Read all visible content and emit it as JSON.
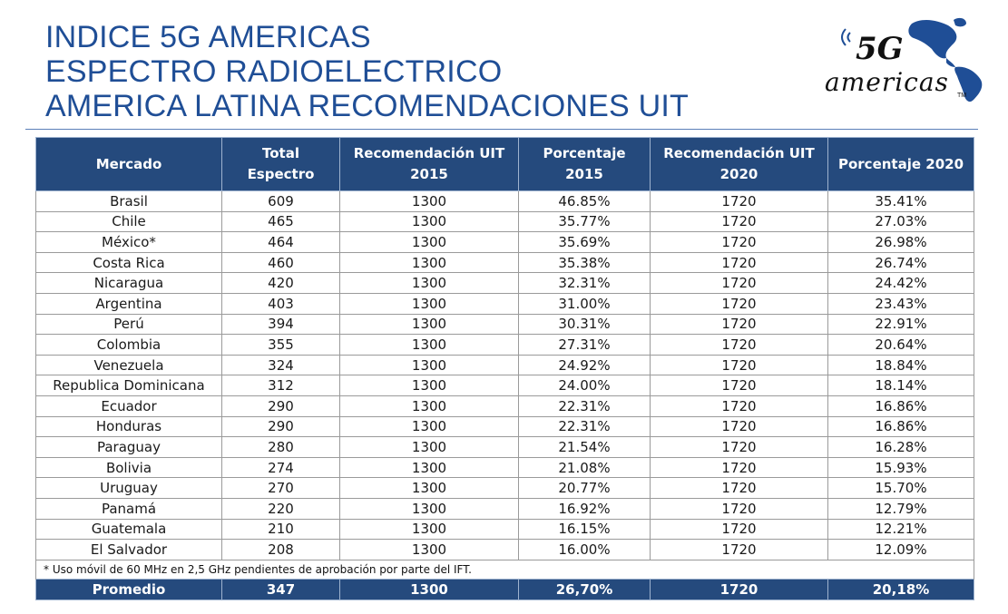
{
  "title": {
    "line1": "INDICE 5G AMERICAS",
    "line2": "ESPECTRO RADIOELECTRICO",
    "line3": "AMERICA LATINA RECOMENDACIONES UIT"
  },
  "logo": {
    "text_top": "5G",
    "text_bottom": "americas",
    "tm": "TM",
    "icon": "americas-map-logo-icon",
    "colors": {
      "map": "#1f4e96",
      "text": "#111111"
    }
  },
  "table": {
    "headers": [
      {
        "line1": "Mercado",
        "line2": ""
      },
      {
        "line1": "Total",
        "line2": "Espectro"
      },
      {
        "line1": "Recomendación UIT",
        "line2": "2015"
      },
      {
        "line1": "Porcentaje",
        "line2": "2015"
      },
      {
        "line1": "Recomendación UIT",
        "line2": "2020"
      },
      {
        "line1": "Porcentaje 2020",
        "line2": ""
      }
    ],
    "rows": [
      [
        "Brasil",
        "609",
        "1300",
        "46.85%",
        "1720",
        "35.41%"
      ],
      [
        "Chile",
        "465",
        "1300",
        "35.77%",
        "1720",
        "27.03%"
      ],
      [
        "México*",
        "464",
        "1300",
        "35.69%",
        "1720",
        "26.98%"
      ],
      [
        "Costa Rica",
        "460",
        "1300",
        "35.38%",
        "1720",
        "26.74%"
      ],
      [
        "Nicaragua",
        "420",
        "1300",
        "32.31%",
        "1720",
        "24.42%"
      ],
      [
        "Argentina",
        "403",
        "1300",
        "31.00%",
        "1720",
        "23.43%"
      ],
      [
        "Perú",
        "394",
        "1300",
        "30.31%",
        "1720",
        "22.91%"
      ],
      [
        "Colombia",
        "355",
        "1300",
        "27.31%",
        "1720",
        "20.64%"
      ],
      [
        "Venezuela",
        "324",
        "1300",
        "24.92%",
        "1720",
        "18.84%"
      ],
      [
        "Republica Dominicana",
        "312",
        "1300",
        "24.00%",
        "1720",
        "18.14%"
      ],
      [
        "Ecuador",
        "290",
        "1300",
        "22.31%",
        "1720",
        "16.86%"
      ],
      [
        "Honduras",
        "290",
        "1300",
        "22.31%",
        "1720",
        "16.86%"
      ],
      [
        "Paraguay",
        "280",
        "1300",
        "21.54%",
        "1720",
        "16.28%"
      ],
      [
        "Bolivia",
        "274",
        "1300",
        "21.08%",
        "1720",
        "15.93%"
      ],
      [
        "Uruguay",
        "270",
        "1300",
        "20.77%",
        "1720",
        "15.70%"
      ],
      [
        "Panamá",
        "220",
        "1300",
        "16.92%",
        "1720",
        "12.79%"
      ],
      [
        "Guatemala",
        "210",
        "1300",
        "16.15%",
        "1720",
        "12.21%"
      ],
      [
        "El Salvador",
        "208",
        "1300",
        "16.00%",
        "1720",
        "12.09%"
      ]
    ],
    "note": "* Uso móvil de 60 MHz en 2,5 GHz pendientes de aprobación por parte del IFT.",
    "average": [
      "Promedio",
      "347",
      "1300",
      "26,70%",
      "1720",
      "20,18%"
    ],
    "colors": {
      "header_bg": "#254a7d",
      "header_text": "#ffffff"
    }
  }
}
